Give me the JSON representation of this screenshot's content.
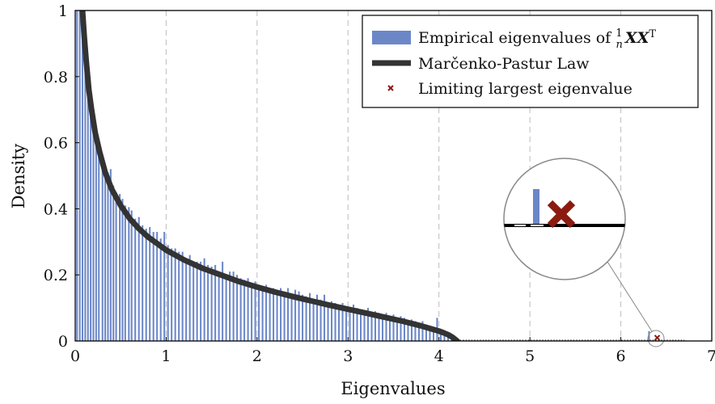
{
  "chart_data": {
    "type": "bar",
    "xlabel": "Eigenvalues",
    "ylabel": "Density",
    "xlim": [
      0,
      7
    ],
    "ylim": [
      0,
      1
    ],
    "xticks": [
      "0",
      "1",
      "2",
      "3",
      "4",
      "5",
      "6",
      "7"
    ],
    "yticks": [
      "0",
      "0.2",
      "0.4",
      "0.6",
      "0.8",
      "1"
    ],
    "grid": "vertical dashed",
    "legend_position": "top-right",
    "series": [
      {
        "name": "Empirical eigenvalues of ",
        "name_math": "1/n XX^T",
        "type": "bar",
        "color": "#6b87c8",
        "bin_width": 0.0333,
        "bins": [
          {
            "x": 0.02,
            "y": 1.0
          },
          {
            "x": 0.05,
            "y": 1.0
          },
          {
            "x": 0.08,
            "y": 1.0
          },
          {
            "x": 0.11,
            "y": 0.95
          },
          {
            "x": 0.14,
            "y": 0.85
          },
          {
            "x": 0.17,
            "y": 0.76
          },
          {
            "x": 0.2,
            "y": 0.69
          },
          {
            "x": 0.23,
            "y": 0.64
          },
          {
            "x": 0.26,
            "y": 0.6
          },
          {
            "x": 0.3,
            "y": 0.56
          },
          {
            "x": 0.33,
            "y": 0.53
          },
          {
            "x": 0.36,
            "y": 0.51
          },
          {
            "x": 0.39,
            "y": 0.52
          },
          {
            "x": 0.42,
            "y": 0.47
          },
          {
            "x": 0.45,
            "y": 0.45
          },
          {
            "x": 0.49,
            "y": 0.445
          },
          {
            "x": 0.52,
            "y": 0.43
          },
          {
            "x": 0.55,
            "y": 0.41
          },
          {
            "x": 0.59,
            "y": 0.405
          },
          {
            "x": 0.62,
            "y": 0.395
          },
          {
            "x": 0.66,
            "y": 0.37
          },
          {
            "x": 0.7,
            "y": 0.375
          },
          {
            "x": 0.74,
            "y": 0.35
          },
          {
            "x": 0.78,
            "y": 0.34
          },
          {
            "x": 0.82,
            "y": 0.345
          },
          {
            "x": 0.86,
            "y": 0.33
          },
          {
            "x": 0.9,
            "y": 0.33
          },
          {
            "x": 0.94,
            "y": 0.31
          },
          {
            "x": 0.98,
            "y": 0.33
          },
          {
            "x": 1.02,
            "y": 0.29
          },
          {
            "x": 1.06,
            "y": 0.28
          },
          {
            "x": 1.1,
            "y": 0.28
          },
          {
            "x": 1.14,
            "y": 0.27
          },
          {
            "x": 1.18,
            "y": 0.27
          },
          {
            "x": 1.22,
            "y": 0.25
          },
          {
            "x": 1.26,
            "y": 0.26
          },
          {
            "x": 1.3,
            "y": 0.23
          },
          {
            "x": 1.34,
            "y": 0.24
          },
          {
            "x": 1.38,
            "y": 0.24
          },
          {
            "x": 1.42,
            "y": 0.25
          },
          {
            "x": 1.46,
            "y": 0.23
          },
          {
            "x": 1.5,
            "y": 0.225
          },
          {
            "x": 1.54,
            "y": 0.23
          },
          {
            "x": 1.58,
            "y": 0.21
          },
          {
            "x": 1.62,
            "y": 0.24
          },
          {
            "x": 1.66,
            "y": 0.2
          },
          {
            "x": 1.7,
            "y": 0.21
          },
          {
            "x": 1.74,
            "y": 0.21
          },
          {
            "x": 1.78,
            "y": 0.2
          },
          {
            "x": 1.82,
            "y": 0.19
          },
          {
            "x": 1.86,
            "y": 0.185
          },
          {
            "x": 1.9,
            "y": 0.19
          },
          {
            "x": 1.94,
            "y": 0.175
          },
          {
            "x": 1.98,
            "y": 0.18
          },
          {
            "x": 2.02,
            "y": 0.17
          },
          {
            "x": 2.06,
            "y": 0.165
          },
          {
            "x": 2.1,
            "y": 0.17
          },
          {
            "x": 2.14,
            "y": 0.16
          },
          {
            "x": 2.18,
            "y": 0.16
          },
          {
            "x": 2.22,
            "y": 0.155
          },
          {
            "x": 2.26,
            "y": 0.16
          },
          {
            "x": 2.3,
            "y": 0.15
          },
          {
            "x": 2.34,
            "y": 0.16
          },
          {
            "x": 2.38,
            "y": 0.14
          },
          {
            "x": 2.42,
            "y": 0.155
          },
          {
            "x": 2.46,
            "y": 0.15
          },
          {
            "x": 2.5,
            "y": 0.14
          },
          {
            "x": 2.54,
            "y": 0.135
          },
          {
            "x": 2.58,
            "y": 0.145
          },
          {
            "x": 2.62,
            "y": 0.12
          },
          {
            "x": 2.66,
            "y": 0.14
          },
          {
            "x": 2.7,
            "y": 0.125
          },
          {
            "x": 2.74,
            "y": 0.14
          },
          {
            "x": 2.78,
            "y": 0.11
          },
          {
            "x": 2.82,
            "y": 0.12
          },
          {
            "x": 2.86,
            "y": 0.115
          },
          {
            "x": 2.9,
            "y": 0.1
          },
          {
            "x": 2.94,
            "y": 0.115
          },
          {
            "x": 2.98,
            "y": 0.105
          },
          {
            "x": 3.02,
            "y": 0.1
          },
          {
            "x": 3.06,
            "y": 0.11
          },
          {
            "x": 3.1,
            "y": 0.1
          },
          {
            "x": 3.14,
            "y": 0.095
          },
          {
            "x": 3.18,
            "y": 0.09
          },
          {
            "x": 3.22,
            "y": 0.1
          },
          {
            "x": 3.26,
            "y": 0.085
          },
          {
            "x": 3.3,
            "y": 0.09
          },
          {
            "x": 3.34,
            "y": 0.085
          },
          {
            "x": 3.38,
            "y": 0.08
          },
          {
            "x": 3.42,
            "y": 0.085
          },
          {
            "x": 3.46,
            "y": 0.075
          },
          {
            "x": 3.5,
            "y": 0.08
          },
          {
            "x": 3.54,
            "y": 0.07
          },
          {
            "x": 3.58,
            "y": 0.075
          },
          {
            "x": 3.62,
            "y": 0.07
          },
          {
            "x": 3.66,
            "y": 0.06
          },
          {
            "x": 3.7,
            "y": 0.065
          },
          {
            "x": 3.74,
            "y": 0.06
          },
          {
            "x": 3.78,
            "y": 0.055
          },
          {
            "x": 3.82,
            "y": 0.06
          },
          {
            "x": 3.86,
            "y": 0.05
          },
          {
            "x": 3.9,
            "y": 0.045
          },
          {
            "x": 3.94,
            "y": 0.04
          },
          {
            "x": 3.98,
            "y": 0.07
          },
          {
            "x": 4.02,
            "y": 0.035
          },
          {
            "x": 4.06,
            "y": 0.03
          },
          {
            "x": 4.1,
            "y": 0.025
          },
          {
            "x": 4.14,
            "y": 0.02
          },
          {
            "x": 6.31,
            "y": 0.03
          }
        ]
      },
      {
        "name": "Marčenko-Pastur Law",
        "type": "line",
        "color": "#333333",
        "x": [
          0.08,
          0.1,
          0.12,
          0.15,
          0.18,
          0.22,
          0.27,
          0.33,
          0.4,
          0.5,
          0.6,
          0.7,
          0.8,
          0.9,
          1.0,
          1.2,
          1.4,
          1.6,
          1.8,
          2.0,
          2.2,
          2.4,
          2.6,
          2.8,
          3.0,
          3.2,
          3.4,
          3.6,
          3.8,
          3.9,
          4.0,
          4.05,
          4.1,
          4.15,
          4.2
        ],
        "y": [
          1.0,
          0.92,
          0.85,
          0.76,
          0.7,
          0.63,
          0.57,
          0.51,
          0.46,
          0.41,
          0.37,
          0.34,
          0.315,
          0.295,
          0.275,
          0.245,
          0.22,
          0.2,
          0.18,
          0.163,
          0.148,
          0.134,
          0.121,
          0.108,
          0.096,
          0.084,
          0.072,
          0.06,
          0.046,
          0.038,
          0.03,
          0.025,
          0.019,
          0.011,
          0.0
        ]
      },
      {
        "name": "Limiting largest eigenvalue",
        "type": "scatter",
        "color": "#8b1a10",
        "x": [
          6.4
        ],
        "y": [
          0.005
        ]
      }
    ]
  }
}
